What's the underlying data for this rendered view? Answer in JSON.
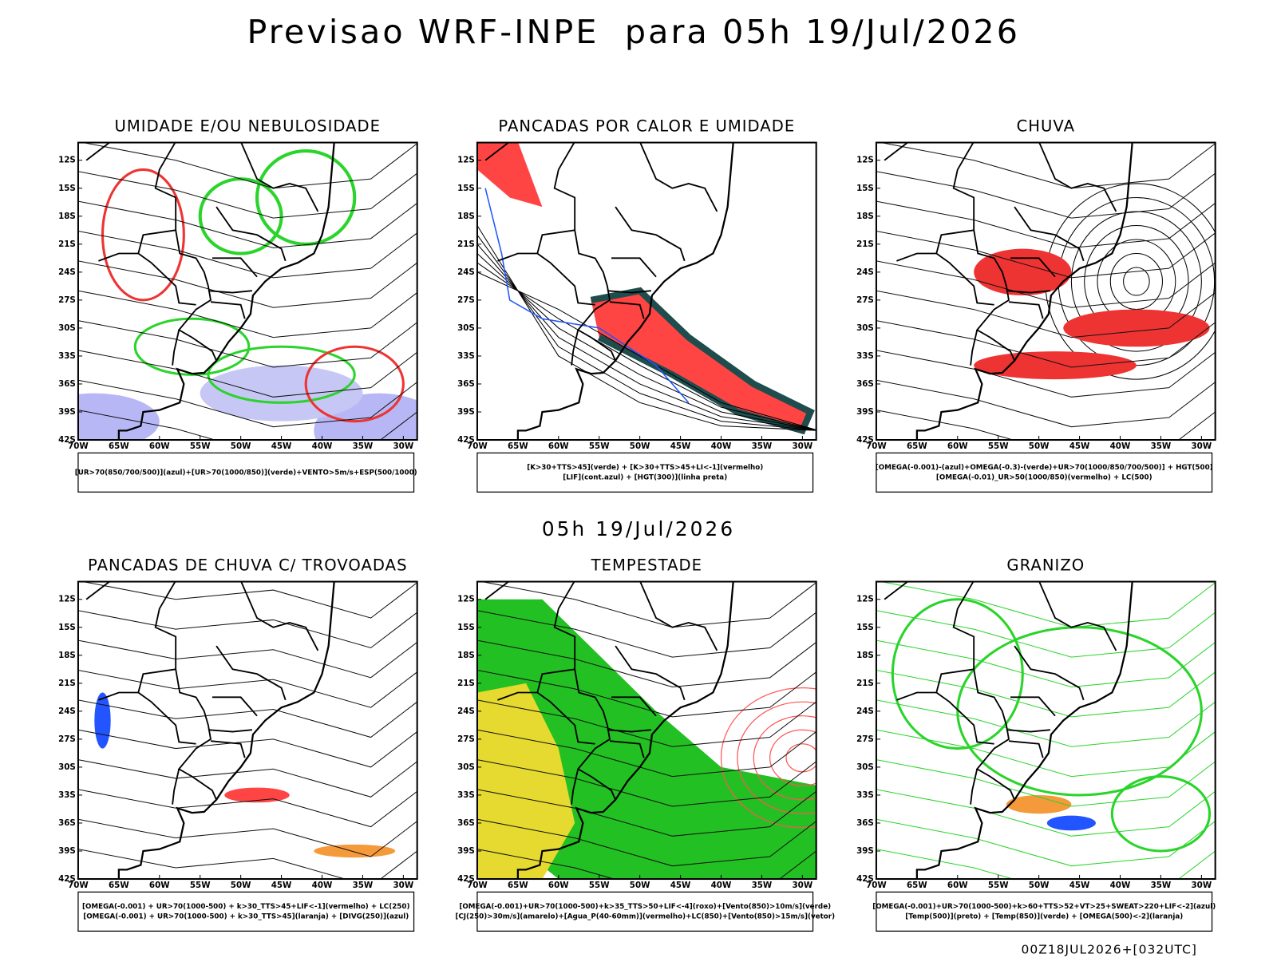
{
  "title": "Previsao WRF-INPE  para 05h 19/Jul/2026",
  "middle_label": "05h 19/Jul/2026",
  "footer": "00Z18JUL2026+[032UTC]",
  "lat_ticks": [
    "12S",
    "15S",
    "18S",
    "21S",
    "24S",
    "27S",
    "30S",
    "33S",
    "36S",
    "39S",
    "42S"
  ],
  "lon_ticks": [
    "70W",
    "65W",
    "60W",
    "55W",
    "50W",
    "45W",
    "40W",
    "35W",
    "30W"
  ],
  "panels": [
    {
      "title": "UMIDADE E/OU NEBULOSIDADE",
      "legend": [
        "[UR>70(850/700/500)](azul)+[UR>70(1000/850)](verde)+VENTO>5m/s+ESP(500/1000)"
      ]
    },
    {
      "title": "PANCADAS POR CALOR E UMIDADE",
      "legend": [
        "[K>30+TTS>45](verde) + [K>30+TTS>45+LI<-1](vermelho)",
        "[LIF](cont.azul) + [HGT(300)](linha preta)"
      ]
    },
    {
      "title": "CHUVA",
      "legend": [
        "[OMEGA(-0.001)-(azul)+OMEGA(-0.3)-(verde)+UR>70(1000/850/700/500)] + HGT(500)",
        "[OMEGA(-0.01)_UR>50(1000/850)(vermelho) + LC(500)"
      ]
    },
    {
      "title": "PANCADAS DE CHUVA C/ TROVOADAS",
      "legend": [
        "[OMEGA(-0.001) + UR>70(1000-500) + k>30_TTS>45+LIF<-1](vermelho) + LC(250)",
        "[OMEGA(-0.001) + UR>70(1000-500) + k>30_TTS>45](laranja) + [DIVG(250)](azul)"
      ]
    },
    {
      "title": "TEMPESTADE",
      "legend": [
        "[OMEGA(-0.001)+UR>70(1000-500)+k>35_TTS>50+LIF<-4](roxo)+[Vento(850)>10m/s](verde)",
        "[CJ(250)>30m/s](amarelo)+[Agua_P(40-60mm)](vermelho)+LC(850)+[Vento(850)>15m/s](vetor)"
      ]
    },
    {
      "title": "GRANIZO",
      "legend": [
        "[OMEGA(-0.001)+UR>70(1000-500)+k>60+TTS>52+VT>25+SWEAT>220+LIF<-2](azul)",
        "[Temp(500)](preto) + [Temp(850)](verde) + [OMEGA(500)<-2](laranja)"
      ]
    }
  ]
}
